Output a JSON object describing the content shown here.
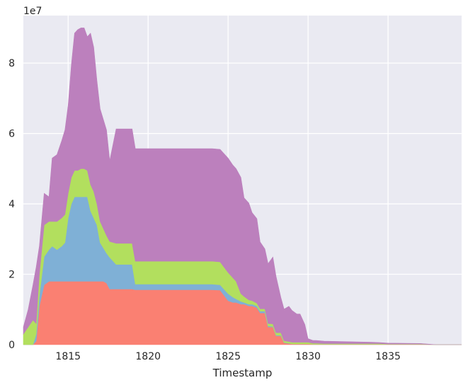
{
  "chart_data": {
    "type": "area",
    "stacked": true,
    "xlabel": "Timestamp",
    "ylabel": "",
    "y_offset_label": "1e7",
    "xlim": [
      1812.2,
      1839.6
    ],
    "ylim": [
      0,
      9.35
    ],
    "x_ticks": [
      1815,
      1820,
      1825,
      1830,
      1835
    ],
    "x_tick_labels": [
      "1815",
      "1820",
      "1825",
      "1830",
      "1835"
    ],
    "y_ticks": [
      0,
      2,
      4,
      6,
      8
    ],
    "y_tick_labels": [
      "0",
      "2",
      "4",
      "6",
      "8"
    ],
    "grid": true,
    "background": "#eaeaf2",
    "x": [
      1812.2,
      1812.5,
      1812.8,
      1813.0,
      1813.2,
      1813.5,
      1813.8,
      1814.0,
      1814.3,
      1814.6,
      1814.8,
      1815.0,
      1815.2,
      1815.4,
      1815.6,
      1815.8,
      1816.0,
      1816.2,
      1816.4,
      1816.6,
      1816.8,
      1817.0,
      1817.2,
      1817.4,
      1817.6,
      1818.0,
      1818.5,
      1819.0,
      1819.2,
      1820.0,
      1821.0,
      1822.0,
      1823.0,
      1824.0,
      1824.5,
      1825.0,
      1825.3,
      1825.5,
      1825.8,
      1826.0,
      1826.3,
      1826.5,
      1826.8,
      1827.0,
      1827.3,
      1827.5,
      1827.8,
      1828.0,
      1828.3,
      1828.5,
      1828.8,
      1829.0,
      1829.3,
      1829.5,
      1829.8,
      1830.0,
      1830.3,
      1830.5,
      1831.0,
      1832.0,
      1833.0,
      1834.0,
      1834.5,
      1835.0,
      1836.0,
      1837.0,
      1838.0,
      1839.6
    ],
    "series": [
      {
        "color": "#fa8072",
        "values": [
          0,
          0,
          0,
          0.1,
          1.1,
          1.7,
          1.8,
          1.8,
          1.8,
          1.8,
          1.8,
          1.8,
          1.8,
          1.8,
          1.8,
          1.8,
          1.8,
          1.8,
          1.8,
          1.8,
          1.8,
          1.8,
          1.8,
          1.75,
          1.58,
          1.58,
          1.58,
          1.58,
          1.56,
          1.56,
          1.56,
          1.56,
          1.56,
          1.56,
          1.55,
          1.25,
          1.2,
          1.2,
          1.15,
          1.15,
          1.1,
          1.1,
          1.05,
          0.9,
          0.9,
          0.5,
          0.5,
          0.25,
          0.25,
          0.05,
          0.03,
          0.02,
          0.02,
          0.02,
          0.02,
          0.02,
          0.01,
          0.01,
          0.01,
          0.01,
          0.01,
          0.01,
          0.01,
          0.005,
          0.005,
          0.005,
          0,
          0
        ]
      },
      {
        "color": "#7fb0d6",
        "values": [
          0,
          0,
          0,
          0.2,
          0.3,
          0.8,
          0.9,
          1.0,
          0.9,
          1.0,
          1.1,
          1.8,
          2.2,
          2.4,
          2.4,
          2.4,
          2.4,
          2.4,
          2.0,
          1.8,
          1.6,
          1.1,
          0.95,
          0.85,
          0.9,
          0.7,
          0.7,
          0.7,
          0.16,
          0.16,
          0.16,
          0.16,
          0.16,
          0.16,
          0.15,
          0.2,
          0.15,
          0.1,
          0.08,
          0.05,
          0.05,
          0.05,
          0.05,
          0.05,
          0.05,
          0.03,
          0.02,
          0.02,
          0.02,
          0.01,
          0.01,
          0.0,
          0.0,
          0.0,
          0.0,
          0.0,
          0.0,
          0.0,
          0.0,
          0.0,
          0.0,
          0.0,
          0.0,
          0.0,
          0.0,
          0.0,
          0,
          0
        ]
      },
      {
        "color": "#b2df5e",
        "values": [
          0.3,
          0.5,
          0.7,
          0.3,
          0.6,
          0.9,
          0.8,
          0.7,
          0.8,
          0.8,
          0.8,
          0.7,
          0.75,
          0.75,
          0.75,
          0.8,
          0.8,
          0.75,
          0.75,
          0.75,
          0.6,
          0.6,
          0.55,
          0.5,
          0.45,
          0.6,
          0.6,
          0.6,
          0.65,
          0.65,
          0.65,
          0.65,
          0.65,
          0.65,
          0.65,
          0.6,
          0.55,
          0.5,
          0.22,
          0.17,
          0.12,
          0.1,
          0.08,
          0.07,
          0.07,
          0.07,
          0.07,
          0.07,
          0.07,
          0.05,
          0.05,
          0.05,
          0.05,
          0.05,
          0.05,
          0.05,
          0.03,
          0.03,
          0.02,
          0.02,
          0.02,
          0.02,
          0.02,
          0.01,
          0.01,
          0.01,
          0,
          0
        ]
      },
      {
        "color": "#bc80bd",
        "values": [
          0.2,
          0.5,
          1.0,
          1.6,
          0.8,
          0.9,
          0.7,
          1.8,
          1.9,
          2.2,
          2.4,
          2.5,
          3.2,
          3.9,
          4.0,
          4.0,
          4.0,
          3.8,
          4.3,
          4.1,
          3.5,
          3.2,
          3.1,
          3.0,
          2.3,
          3.25,
          3.25,
          3.25,
          3.2,
          3.2,
          3.2,
          3.2,
          3.2,
          3.2,
          3.2,
          3.25,
          3.2,
          3.2,
          3.3,
          2.8,
          2.75,
          2.5,
          2.4,
          1.9,
          1.7,
          1.7,
          1.9,
          1.6,
          1.0,
          0.9,
          1.0,
          0.9,
          0.8,
          0.8,
          0.5,
          0.1,
          0.08,
          0.08,
          0.07,
          0.06,
          0.05,
          0.04,
          0.03,
          0.03,
          0.025,
          0.02,
          0,
          0
        ]
      }
    ]
  }
}
